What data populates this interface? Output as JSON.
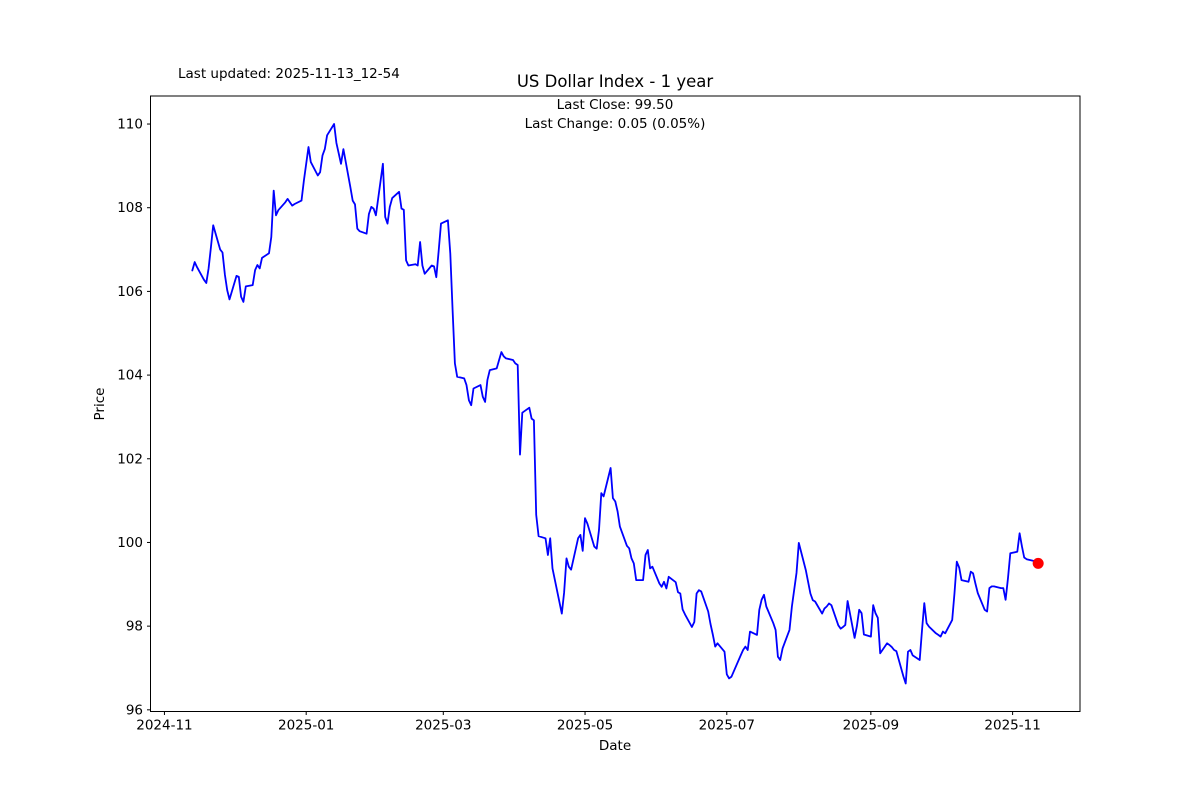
{
  "figure": {
    "last_updated": "Last updated: 2025-11-13_12-54",
    "title": "US Dollar Index - 1 year",
    "annotation_line1": "Last Close: 99.50",
    "annotation_line2": "Last Change: 0.05 (0.05%)",
    "xlabel": "Date",
    "ylabel": "Price"
  },
  "chart_data": {
    "type": "line",
    "title": "US Dollar Index - 1 year",
    "xlabel": "Date",
    "ylabel": "Price",
    "legend": "none",
    "grid": false,
    "line_color": "#0000ff",
    "marker_color": "#ff0000",
    "last_close": 99.5,
    "last_change": "0.05 (0.05%)",
    "xlim": [
      "2024-10-26",
      "2025-11-30"
    ],
    "ylim": [
      95.96,
      110.67
    ],
    "y_ticks": [
      96,
      98,
      100,
      102,
      104,
      106,
      108,
      110
    ],
    "x_ticks": [
      {
        "date": "2024-11-01",
        "label": "2024-11"
      },
      {
        "date": "2025-01-01",
        "label": "2025-01"
      },
      {
        "date": "2025-03-01",
        "label": "2025-03"
      },
      {
        "date": "2025-05-01",
        "label": "2025-05"
      },
      {
        "date": "2025-07-01",
        "label": "2025-07"
      },
      {
        "date": "2025-09-01",
        "label": "2025-09"
      },
      {
        "date": "2025-11-01",
        "label": "2025-11"
      }
    ],
    "points": [
      [
        "2024-11-13",
        106.5
      ],
      [
        "2024-11-14",
        106.7
      ],
      [
        "2024-11-15",
        106.58
      ],
      [
        "2024-11-18",
        106.28
      ],
      [
        "2024-11-19",
        106.2
      ],
      [
        "2024-11-20",
        106.55
      ],
      [
        "2024-11-21",
        107.05
      ],
      [
        "2024-11-22",
        107.58
      ],
      [
        "2024-11-25",
        107.0
      ],
      [
        "2024-11-26",
        106.93
      ],
      [
        "2024-11-27",
        106.4
      ],
      [
        "2024-11-28",
        106.03
      ],
      [
        "2024-11-29",
        105.81
      ],
      [
        "2024-12-02",
        106.37
      ],
      [
        "2024-12-03",
        106.35
      ],
      [
        "2024-12-04",
        105.87
      ],
      [
        "2024-12-05",
        105.75
      ],
      [
        "2024-12-06",
        106.12
      ],
      [
        "2024-12-09",
        106.15
      ],
      [
        "2024-12-10",
        106.51
      ],
      [
        "2024-12-11",
        106.63
      ],
      [
        "2024-12-12",
        106.55
      ],
      [
        "2024-12-13",
        106.8
      ],
      [
        "2024-12-16",
        106.91
      ],
      [
        "2024-12-17",
        107.3
      ],
      [
        "2024-12-18",
        108.41
      ],
      [
        "2024-12-19",
        107.82
      ],
      [
        "2024-12-20",
        107.94
      ],
      [
        "2024-12-23",
        108.13
      ],
      [
        "2024-12-24",
        108.21
      ],
      [
        "2024-12-26",
        108.05
      ],
      [
        "2024-12-27",
        108.09
      ],
      [
        "2024-12-30",
        108.17
      ],
      [
        "2024-12-31",
        108.65
      ],
      [
        "2025-01-02",
        109.45
      ],
      [
        "2025-01-03",
        109.09
      ],
      [
        "2025-01-06",
        108.77
      ],
      [
        "2025-01-07",
        108.85
      ],
      [
        "2025-01-08",
        109.25
      ],
      [
        "2025-01-09",
        109.4
      ],
      [
        "2025-01-10",
        109.73
      ],
      [
        "2025-01-13",
        110.0
      ],
      [
        "2025-01-14",
        109.55
      ],
      [
        "2025-01-15",
        109.3
      ],
      [
        "2025-01-16",
        109.05
      ],
      [
        "2025-01-17",
        109.4
      ],
      [
        "2025-01-20",
        108.5
      ],
      [
        "2025-01-21",
        108.17
      ],
      [
        "2025-01-22",
        108.08
      ],
      [
        "2025-01-23",
        107.5
      ],
      [
        "2025-01-24",
        107.44
      ],
      [
        "2025-01-27",
        107.38
      ],
      [
        "2025-01-28",
        107.85
      ],
      [
        "2025-01-29",
        108.02
      ],
      [
        "2025-01-30",
        107.98
      ],
      [
        "2025-01-31",
        107.82
      ],
      [
        "2025-02-03",
        109.05
      ],
      [
        "2025-02-04",
        107.78
      ],
      [
        "2025-02-05",
        107.62
      ],
      [
        "2025-02-06",
        108.02
      ],
      [
        "2025-02-07",
        108.23
      ],
      [
        "2025-02-10",
        108.38
      ],
      [
        "2025-02-11",
        107.98
      ],
      [
        "2025-02-12",
        107.95
      ],
      [
        "2025-02-13",
        106.74
      ],
      [
        "2025-02-14",
        106.62
      ],
      [
        "2025-02-17",
        106.65
      ],
      [
        "2025-02-18",
        106.62
      ],
      [
        "2025-02-19",
        107.18
      ],
      [
        "2025-02-20",
        106.62
      ],
      [
        "2025-02-21",
        106.42
      ],
      [
        "2025-02-24",
        106.62
      ],
      [
        "2025-02-25",
        106.6
      ],
      [
        "2025-02-26",
        106.34
      ],
      [
        "2025-02-27",
        106.95
      ],
      [
        "2025-02-28",
        107.62
      ],
      [
        "2025-03-03",
        107.7
      ],
      [
        "2025-03-04",
        106.9
      ],
      [
        "2025-03-05",
        105.55
      ],
      [
        "2025-03-06",
        104.28
      ],
      [
        "2025-03-07",
        103.96
      ],
      [
        "2025-03-10",
        103.92
      ],
      [
        "2025-03-11",
        103.76
      ],
      [
        "2025-03-12",
        103.4
      ],
      [
        "2025-03-13",
        103.28
      ],
      [
        "2025-03-14",
        103.68
      ],
      [
        "2025-03-17",
        103.76
      ],
      [
        "2025-03-18",
        103.48
      ],
      [
        "2025-03-19",
        103.36
      ],
      [
        "2025-03-20",
        103.88
      ],
      [
        "2025-03-21",
        104.12
      ],
      [
        "2025-03-24",
        104.16
      ],
      [
        "2025-03-25",
        104.36
      ],
      [
        "2025-03-26",
        104.55
      ],
      [
        "2025-03-27",
        104.45
      ],
      [
        "2025-03-28",
        104.4
      ],
      [
        "2025-03-31",
        104.36
      ],
      [
        "2025-04-01",
        104.28
      ],
      [
        "2025-04-02",
        104.24
      ],
      [
        "2025-04-03",
        102.1
      ],
      [
        "2025-04-04",
        103.1
      ],
      [
        "2025-04-07",
        103.22
      ],
      [
        "2025-04-08",
        102.96
      ],
      [
        "2025-04-09",
        102.92
      ],
      [
        "2025-04-10",
        100.66
      ],
      [
        "2025-04-11",
        100.15
      ],
      [
        "2025-04-14",
        100.1
      ],
      [
        "2025-04-15",
        99.7
      ],
      [
        "2025-04-16",
        100.1
      ],
      [
        "2025-04-17",
        99.38
      ],
      [
        "2025-04-21",
        98.3
      ],
      [
        "2025-04-22",
        98.8
      ],
      [
        "2025-04-23",
        99.62
      ],
      [
        "2025-04-24",
        99.42
      ],
      [
        "2025-04-25",
        99.35
      ],
      [
        "2025-04-28",
        100.1
      ],
      [
        "2025-04-29",
        100.18
      ],
      [
        "2025-04-30",
        99.8
      ],
      [
        "2025-05-01",
        100.58
      ],
      [
        "2025-05-02",
        100.45
      ],
      [
        "2025-05-05",
        99.9
      ],
      [
        "2025-05-06",
        99.85
      ],
      [
        "2025-05-07",
        100.3
      ],
      [
        "2025-05-08",
        101.18
      ],
      [
        "2025-05-09",
        101.1
      ],
      [
        "2025-05-12",
        101.78
      ],
      [
        "2025-05-13",
        101.06
      ],
      [
        "2025-05-14",
        100.98
      ],
      [
        "2025-05-15",
        100.74
      ],
      [
        "2025-05-16",
        100.38
      ],
      [
        "2025-05-19",
        99.92
      ],
      [
        "2025-05-20",
        99.86
      ],
      [
        "2025-05-21",
        99.62
      ],
      [
        "2025-05-22",
        99.5
      ],
      [
        "2025-05-23",
        99.1
      ],
      [
        "2025-05-26",
        99.1
      ],
      [
        "2025-05-27",
        99.7
      ],
      [
        "2025-05-28",
        99.82
      ],
      [
        "2025-05-29",
        99.38
      ],
      [
        "2025-05-30",
        99.42
      ],
      [
        "2025-06-02",
        99.02
      ],
      [
        "2025-06-03",
        98.94
      ],
      [
        "2025-06-04",
        99.06
      ],
      [
        "2025-06-05",
        98.9
      ],
      [
        "2025-06-06",
        99.18
      ],
      [
        "2025-06-09",
        99.05
      ],
      [
        "2025-06-10",
        98.81
      ],
      [
        "2025-06-11",
        98.78
      ],
      [
        "2025-06-12",
        98.4
      ],
      [
        "2025-06-13",
        98.28
      ],
      [
        "2025-06-16",
        97.98
      ],
      [
        "2025-06-17",
        98.1
      ],
      [
        "2025-06-18",
        98.78
      ],
      [
        "2025-06-19",
        98.86
      ],
      [
        "2025-06-20",
        98.83
      ],
      [
        "2025-06-23",
        98.35
      ],
      [
        "2025-06-24",
        98.05
      ],
      [
        "2025-06-25",
        97.8
      ],
      [
        "2025-06-26",
        97.51
      ],
      [
        "2025-06-27",
        97.59
      ],
      [
        "2025-06-30",
        97.39
      ],
      [
        "2025-07-01",
        96.85
      ],
      [
        "2025-07-02",
        96.75
      ],
      [
        "2025-07-03",
        96.79
      ],
      [
        "2025-07-07",
        97.3
      ],
      [
        "2025-07-08",
        97.43
      ],
      [
        "2025-07-09",
        97.51
      ],
      [
        "2025-07-10",
        97.43
      ],
      [
        "2025-07-11",
        97.87
      ],
      [
        "2025-07-14",
        97.79
      ],
      [
        "2025-07-15",
        98.39
      ],
      [
        "2025-07-16",
        98.63
      ],
      [
        "2025-07-17",
        98.75
      ],
      [
        "2025-07-18",
        98.47
      ],
      [
        "2025-07-21",
        98.07
      ],
      [
        "2025-07-22",
        97.91
      ],
      [
        "2025-07-23",
        97.27
      ],
      [
        "2025-07-24",
        97.19
      ],
      [
        "2025-07-25",
        97.47
      ],
      [
        "2025-07-28",
        97.91
      ],
      [
        "2025-07-29",
        98.47
      ],
      [
        "2025-07-30",
        98.87
      ],
      [
        "2025-07-31",
        99.27
      ],
      [
        "2025-08-01",
        99.99
      ],
      [
        "2025-08-04",
        99.34
      ],
      [
        "2025-08-05",
        99.06
      ],
      [
        "2025-08-06",
        98.78
      ],
      [
        "2025-08-07",
        98.62
      ],
      [
        "2025-08-08",
        98.59
      ],
      [
        "2025-08-11",
        98.3
      ],
      [
        "2025-08-12",
        98.42
      ],
      [
        "2025-08-13",
        98.47
      ],
      [
        "2025-08-14",
        98.54
      ],
      [
        "2025-08-15",
        98.5
      ],
      [
        "2025-08-18",
        98.02
      ],
      [
        "2025-08-19",
        97.94
      ],
      [
        "2025-08-20",
        97.98
      ],
      [
        "2025-08-21",
        98.03
      ],
      [
        "2025-08-22",
        98.6
      ],
      [
        "2025-08-25",
        97.72
      ],
      [
        "2025-08-26",
        98.0
      ],
      [
        "2025-08-27",
        98.39
      ],
      [
        "2025-08-28",
        98.31
      ],
      [
        "2025-08-29",
        97.8
      ],
      [
        "2025-09-01",
        97.75
      ],
      [
        "2025-09-02",
        98.5
      ],
      [
        "2025-09-03",
        98.31
      ],
      [
        "2025-09-04",
        98.2
      ],
      [
        "2025-09-05",
        97.35
      ],
      [
        "2025-09-08",
        97.59
      ],
      [
        "2025-09-09",
        97.55
      ],
      [
        "2025-09-10",
        97.5
      ],
      [
        "2025-09-11",
        97.43
      ],
      [
        "2025-09-12",
        97.4
      ],
      [
        "2025-09-15",
        96.8
      ],
      [
        "2025-09-16",
        96.63
      ],
      [
        "2025-09-17",
        97.39
      ],
      [
        "2025-09-18",
        97.43
      ],
      [
        "2025-09-19",
        97.3
      ],
      [
        "2025-09-22",
        97.19
      ],
      [
        "2025-09-23",
        97.9
      ],
      [
        "2025-09-24",
        98.55
      ],
      [
        "2025-09-25",
        98.07
      ],
      [
        "2025-09-26",
        97.99
      ],
      [
        "2025-09-29",
        97.83
      ],
      [
        "2025-09-30",
        97.79
      ],
      [
        "2025-10-01",
        97.75
      ],
      [
        "2025-10-02",
        97.87
      ],
      [
        "2025-10-03",
        97.83
      ],
      [
        "2025-10-06",
        98.15
      ],
      [
        "2025-10-07",
        98.79
      ],
      [
        "2025-10-08",
        99.54
      ],
      [
        "2025-10-09",
        99.4
      ],
      [
        "2025-10-10",
        99.1
      ],
      [
        "2025-10-13",
        99.06
      ],
      [
        "2025-10-14",
        99.3
      ],
      [
        "2025-10-15",
        99.26
      ],
      [
        "2025-10-16",
        99.02
      ],
      [
        "2025-10-17",
        98.79
      ],
      [
        "2025-10-20",
        98.39
      ],
      [
        "2025-10-21",
        98.35
      ],
      [
        "2025-10-22",
        98.91
      ],
      [
        "2025-10-23",
        98.95
      ],
      [
        "2025-10-24",
        98.95
      ],
      [
        "2025-10-27",
        98.91
      ],
      [
        "2025-10-28",
        98.91
      ],
      [
        "2025-10-29",
        98.63
      ],
      [
        "2025-10-30",
        99.15
      ],
      [
        "2025-10-31",
        99.74
      ],
      [
        "2025-11-03",
        99.78
      ],
      [
        "2025-11-04",
        100.22
      ],
      [
        "2025-11-05",
        99.91
      ],
      [
        "2025-11-06",
        99.64
      ],
      [
        "2025-11-07",
        99.6
      ],
      [
        "2025-11-10",
        99.56
      ],
      [
        "2025-11-11",
        99.45
      ],
      [
        "2025-11-12",
        99.5
      ]
    ]
  }
}
